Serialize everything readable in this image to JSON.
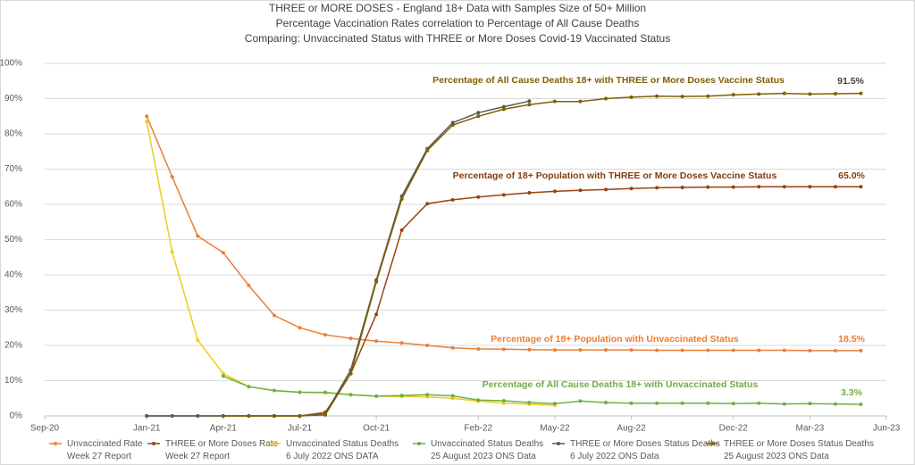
{
  "chart_data": {
    "type": "line",
    "title": [
      "THREE or MORE DOSES - England 18+ Data with Samples Size of 50+ Million",
      "Percentage Vaccination Rates correlation to Percentage of All Cause Deaths",
      "Comparing: Unvaccinated Status with THREE or More Doses Covid-19 Vaccinated Status"
    ],
    "x": [
      "2021-01",
      "2021-02",
      "2021-03",
      "2021-04",
      "2021-05",
      "2021-06",
      "2021-07",
      "2021-08",
      "2021-09",
      "2021-10",
      "2021-11",
      "2021-12",
      "2022-01",
      "2022-02",
      "2022-03",
      "2022-04",
      "2022-05",
      "2022-06",
      "2022-07",
      "2022-08",
      "2022-09",
      "2022-10",
      "2022-11",
      "2022-12",
      "2023-01",
      "2023-02",
      "2023-03",
      "2023-04",
      "2023-05"
    ],
    "xlim": [
      "2020-09",
      "2023-06"
    ],
    "xticks": [
      {
        "value": "2020-09",
        "label": "Sep-20"
      },
      {
        "value": "2021-01",
        "label": "Jan-21"
      },
      {
        "value": "2021-04",
        "label": "Apr-21"
      },
      {
        "value": "2021-07",
        "label": "Jul-21"
      },
      {
        "value": "2021-10",
        "label": "Oct-21"
      },
      {
        "value": "2022-02",
        "label": "Feb-22"
      },
      {
        "value": "2022-05",
        "label": "May-22"
      },
      {
        "value": "2022-08",
        "label": "Aug-22"
      },
      {
        "value": "2022-12",
        "label": "Dec-22"
      },
      {
        "value": "2023-03",
        "label": "Mar-23"
      },
      {
        "value": "2023-06",
        "label": "Jun-23"
      }
    ],
    "ylim": [
      0,
      100
    ],
    "yticks": [
      {
        "value": 0,
        "label": "0%"
      },
      {
        "value": 10,
        "label": "10%"
      },
      {
        "value": 20,
        "label": "20%"
      },
      {
        "value": 30,
        "label": "30%"
      },
      {
        "value": 40,
        "label": "40%"
      },
      {
        "value": 50,
        "label": "50%"
      },
      {
        "value": 60,
        "label": "60%"
      },
      {
        "value": 70,
        "label": "70%"
      },
      {
        "value": 80,
        "label": "80%"
      },
      {
        "value": 90,
        "label": "90%"
      },
      {
        "value": 100,
        "label": "100%"
      }
    ],
    "grid": true,
    "series": [
      {
        "name": "Unvaccinated Rate\nWeek 27 Report",
        "color": "#e8803a",
        "values": [
          85,
          67.8,
          51,
          46.3,
          37,
          28.5,
          25,
          23,
          22,
          21.2,
          20.7,
          20,
          19.3,
          19,
          18.9,
          18.8,
          18.7,
          18.7,
          18.7,
          18.7,
          18.6,
          18.6,
          18.6,
          18.6,
          18.6,
          18.6,
          18.5,
          18.5,
          18.5
        ]
      },
      {
        "name": "THREE or More Doses Rate\nWeek 27 Report",
        "color": "#9a4312",
        "values": [
          0,
          0,
          0,
          0,
          0,
          0,
          0,
          1,
          12,
          28.8,
          52.7,
          60.2,
          61.3,
          62.1,
          62.7,
          63.3,
          63.7,
          64,
          64.2,
          64.5,
          64.7,
          64.8,
          64.9,
          64.9,
          65,
          65,
          65,
          65,
          65
        ]
      },
      {
        "name": "Unvaccinated Status Deaths\n6 July 2022 ONS DATA",
        "color": "#f0cc1c",
        "values": [
          83.5,
          46.5,
          21.5,
          12,
          8.3,
          7.2,
          6.7,
          6.7,
          6,
          5.6,
          5.5,
          5.4,
          5,
          4.2,
          3.6,
          3.3,
          3.0,
          null,
          null,
          null,
          null,
          null,
          null,
          null,
          null,
          null,
          null,
          null,
          null
        ]
      },
      {
        "name": "Unvaccinated Status Deaths\n25 August 2023 ONS Data",
        "color": "#70ad47",
        "values": [
          null,
          null,
          null,
          11.3,
          8.3,
          7.2,
          6.7,
          6.6,
          6,
          5.6,
          5.8,
          6,
          5.7,
          4.5,
          4.3,
          3.8,
          3.5,
          4.2,
          3.8,
          3.6,
          3.6,
          3.6,
          3.6,
          3.5,
          3.6,
          3.4,
          3.5,
          3.4,
          3.3
        ]
      },
      {
        "name": "THREE or More Doses Status Deaths\n6 July 2022 ONS Data",
        "color": "#5a5a5a",
        "values": [
          0,
          0,
          0,
          0,
          0,
          0,
          0,
          0.5,
          13,
          38.5,
          62.3,
          75.8,
          83.2,
          86,
          87.7,
          89.3,
          null,
          null,
          null,
          null,
          null,
          null,
          null,
          null,
          null,
          null,
          null,
          null,
          null
        ]
      },
      {
        "name": "THREE or More Doses Status Deaths\n25 August 2023 ONS Data",
        "color": "#806000",
        "values": [
          null,
          null,
          null,
          0,
          0,
          0,
          0,
          0.3,
          12,
          38,
          61.5,
          75.3,
          82.5,
          85,
          87,
          88.3,
          89.2,
          89.2,
          90,
          90.4,
          90.7,
          90.6,
          90.7,
          91.1,
          91.3,
          91.5,
          91.3,
          91.4,
          91.5
        ]
      }
    ],
    "annotations": [
      {
        "text": "Percentage of All Cause Deaths 18+ with THREE or More Doses Vaccine Status",
        "color": "#806000"
      },
      {
        "text": "91.5%",
        "color": "#404040"
      },
      {
        "text": "Percentage of 18+ Population  with THREE or More Doses Vaccine Status",
        "color": "#843c0c"
      },
      {
        "text": "65.0%",
        "color": "#843c0c"
      },
      {
        "text": "Percentage of 18+  Population  with Unvaccinated Status",
        "color": "#ed7d31"
      },
      {
        "text": "18.5%",
        "color": "#ed7d31"
      },
      {
        "text": "Percentage of All Cause Deaths 18+ with Unvaccinated Status",
        "color": "#70ad47"
      },
      {
        "text": "3.3%",
        "color": "#70ad47"
      }
    ]
  }
}
